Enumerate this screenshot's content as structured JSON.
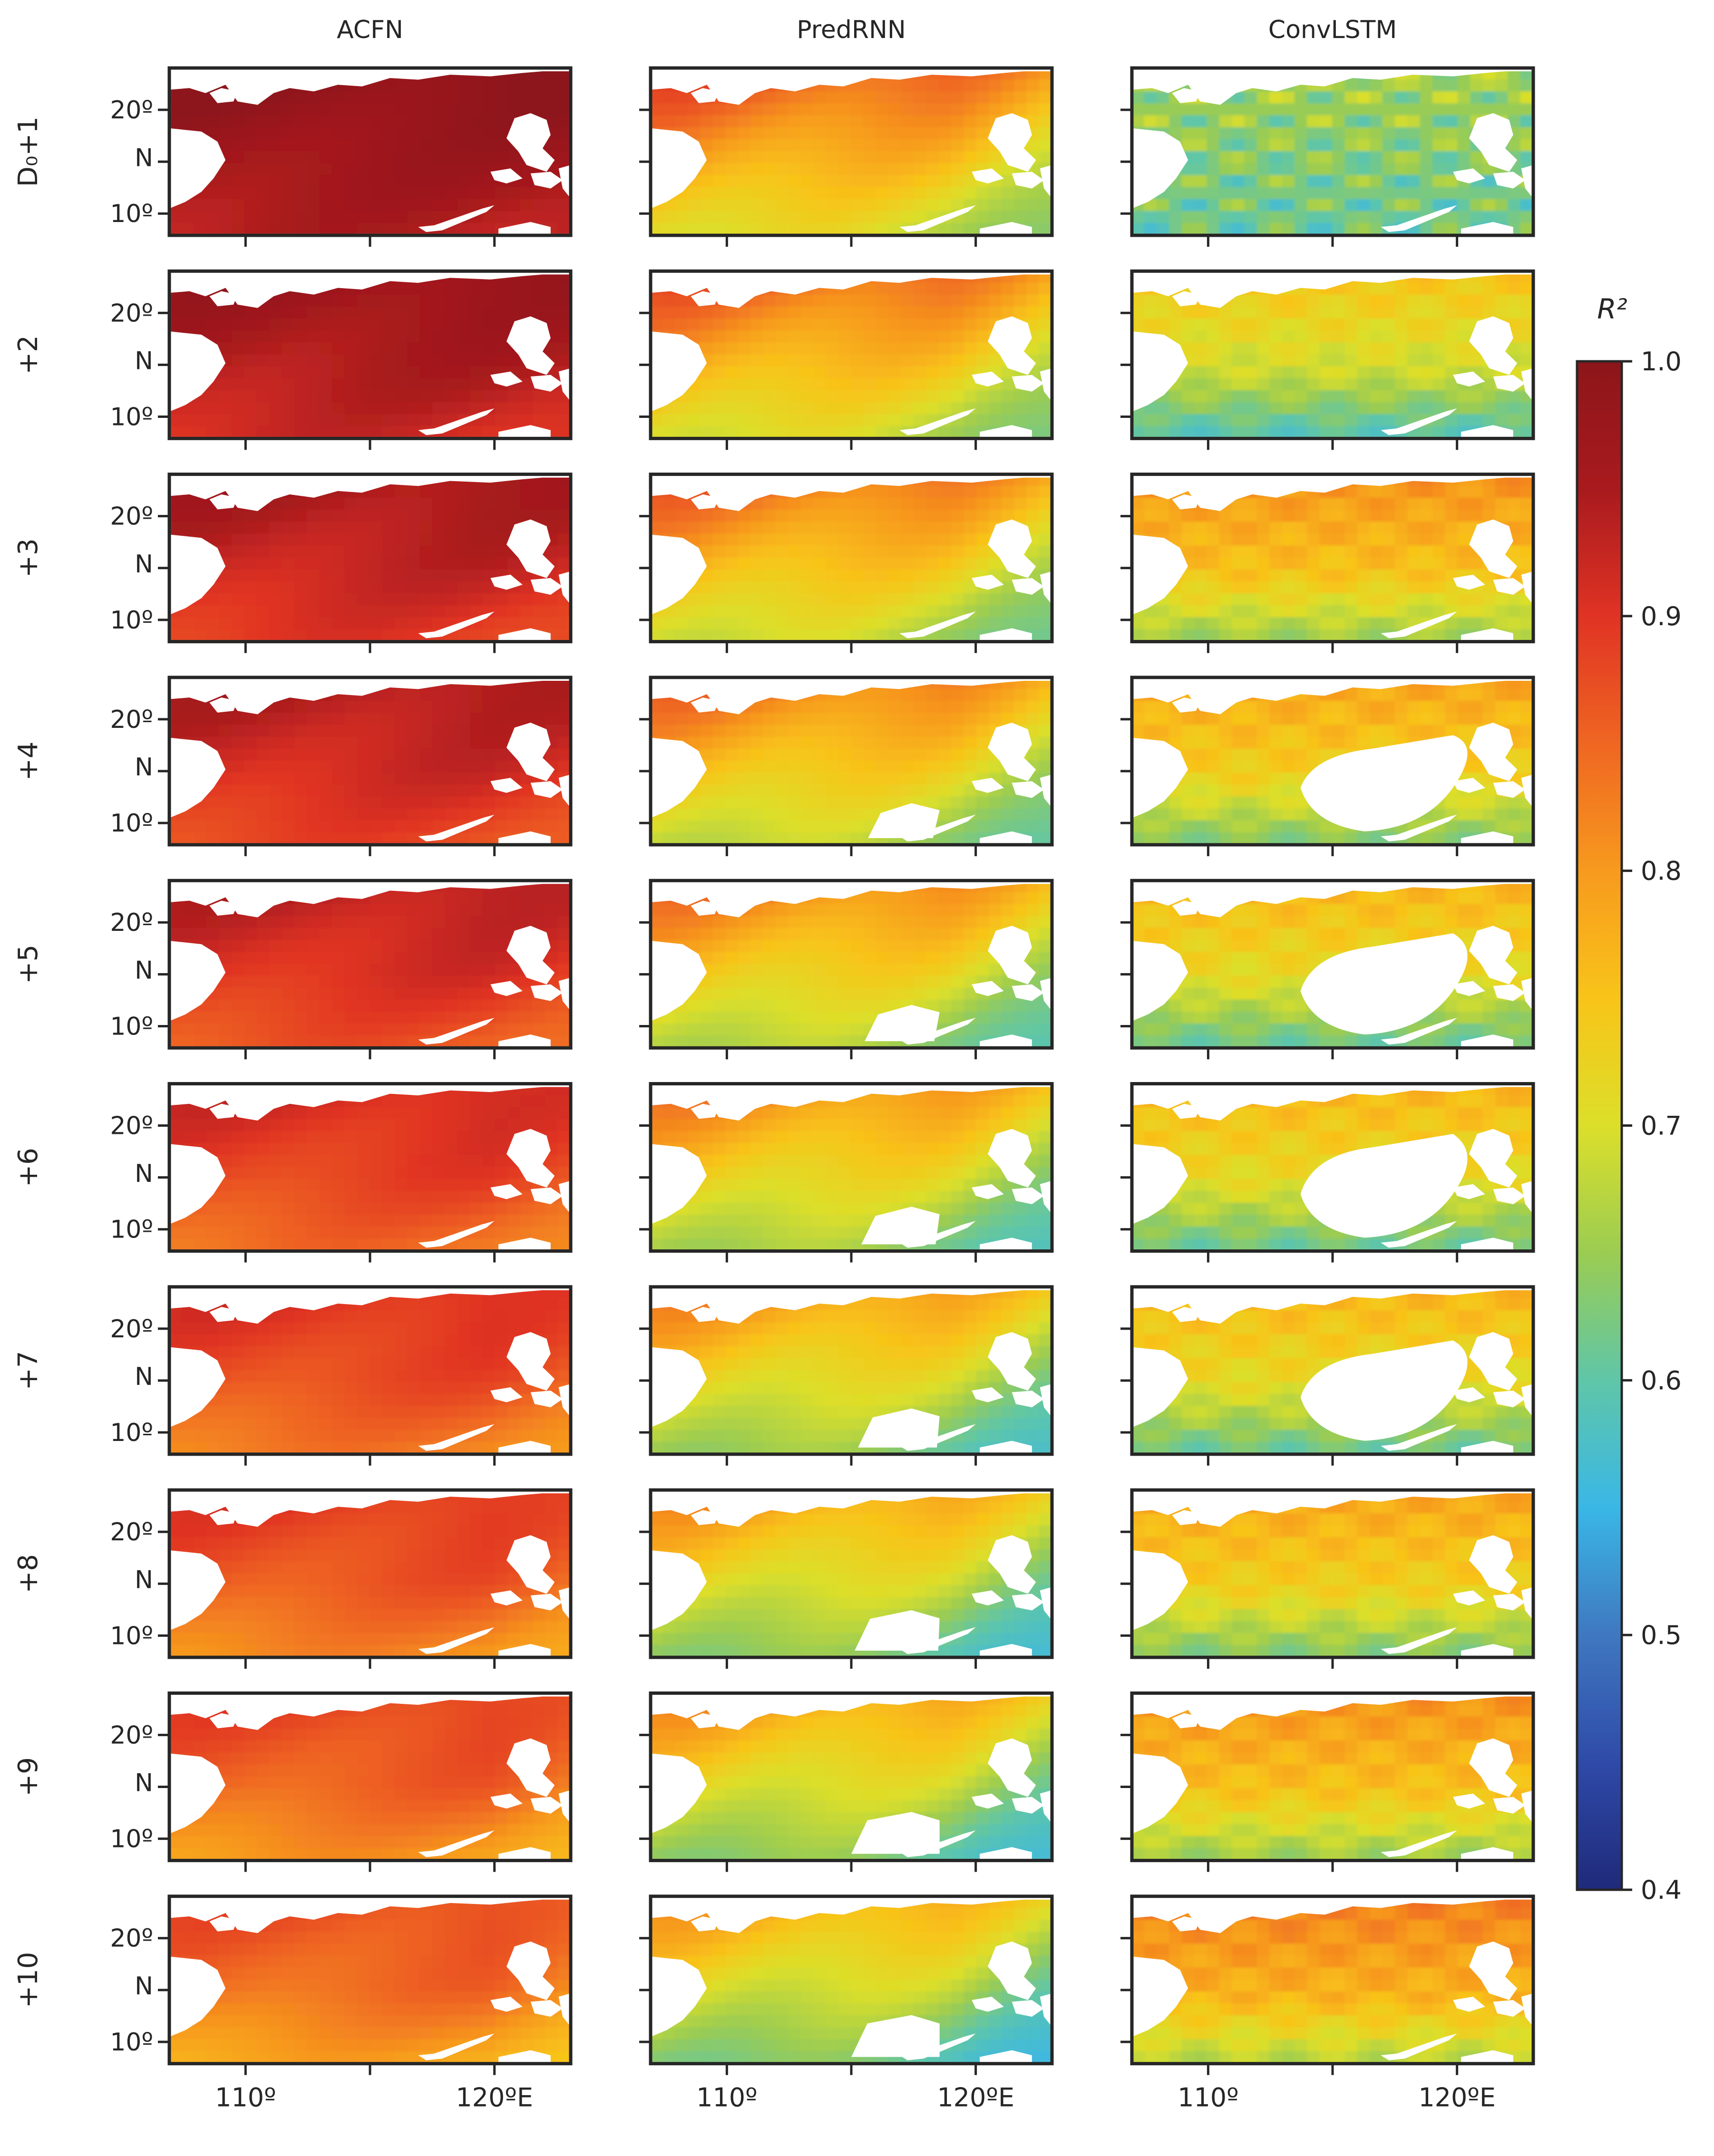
{
  "chart_data": {
    "type": "heatmap",
    "title": "",
    "column_titles": [
      "ACFN",
      "PredRNN",
      "ConvLSTM"
    ],
    "row_labels": [
      "D₀+1",
      "+2",
      "+3",
      "+4",
      "+5",
      "+6",
      "+7",
      "+8",
      "+9",
      "+10"
    ],
    "x_ticks": [
      "110º",
      "120ºE"
    ],
    "y_ticks": [
      "20º",
      "N",
      "10º"
    ],
    "colorbar": {
      "label": "R²",
      "vmin": 0.4,
      "vmax": 1.0,
      "ticks": [
        "1.0",
        "0.9",
        "0.8",
        "0.7",
        "0.6",
        "0.5",
        "0.4"
      ],
      "colormap": [
        "#1f2a7a",
        "#2f4aa8",
        "#3f78c0",
        "#3ab7e6",
        "#5fc6a8",
        "#9bcc52",
        "#dcdf2a",
        "#f8c419",
        "#f79a1e",
        "#ef6622",
        "#e03324",
        "#a81a1e",
        "#8c161a"
      ]
    },
    "lon_range": [
      "107ºE",
      "123ºE"
    ],
    "lat_range": [
      "8ºN",
      "24ºN"
    ],
    "approx_mean_r2": {
      "ACFN": [
        0.97,
        0.95,
        0.93,
        0.92,
        0.91,
        0.89,
        0.88,
        0.87,
        0.86,
        0.85
      ],
      "PredRNN": [
        0.8,
        0.79,
        0.78,
        0.77,
        0.76,
        0.75,
        0.74,
        0.73,
        0.73,
        0.72
      ],
      "ConvLSTM": [
        0.66,
        0.7,
        0.76,
        0.74,
        0.72,
        0.72,
        0.72,
        0.74,
        0.76,
        0.78
      ]
    }
  }
}
